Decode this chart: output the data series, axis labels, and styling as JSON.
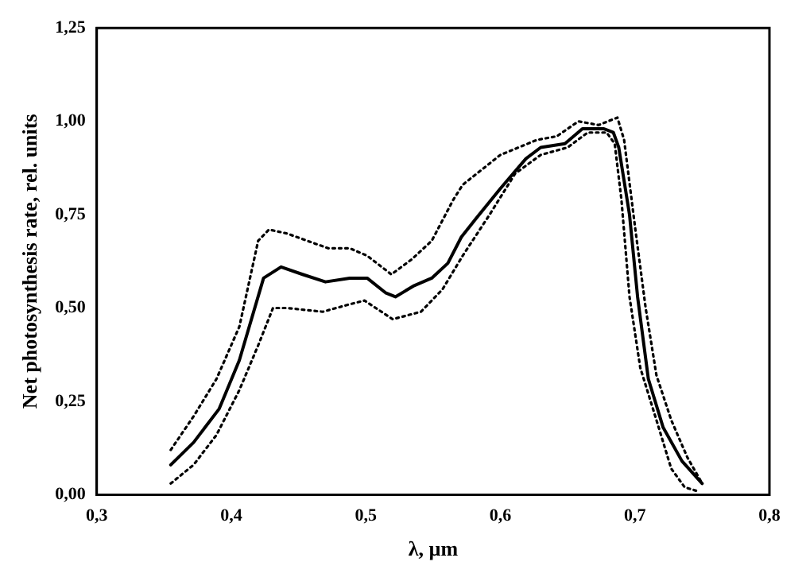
{
  "chart_data": {
    "type": "line",
    "xlabel": "λ, µm",
    "ylabel": "Net photosynthesis rate, rel. units",
    "xlim": [
      0.3,
      0.8
    ],
    "ylim": [
      0,
      1.25
    ],
    "xticks": [
      {
        "value": 0.3,
        "label": "0,3"
      },
      {
        "value": 0.4,
        "label": "0,4"
      },
      {
        "value": 0.5,
        "label": "0,5"
      },
      {
        "value": 0.6,
        "label": "0,6"
      },
      {
        "value": 0.7,
        "label": "0,7"
      },
      {
        "value": 0.8,
        "label": "0,8"
      }
    ],
    "yticks": [
      {
        "value": 0,
        "label": "0,00"
      },
      {
        "value": 0.25,
        "label": "0,25"
      },
      {
        "value": 0.5,
        "label": "0,50"
      },
      {
        "value": 0.75,
        "label": "0,75"
      },
      {
        "value": 1,
        "label": "1,00"
      },
      {
        "value": 1.25,
        "label": "1,25"
      }
    ],
    "grid": false,
    "legend": false,
    "marker": "none",
    "series": [
      {
        "color": "#000000",
        "line_style": "solid",
        "x": [
          0.355,
          0.372,
          0.391,
          0.406,
          0.424,
          0.437,
          0.453,
          0.47,
          0.488,
          0.501,
          0.515,
          0.522,
          0.536,
          0.549,
          0.561,
          0.571,
          0.582,
          0.6,
          0.619,
          0.63,
          0.648,
          0.661,
          0.677,
          0.684,
          0.688,
          0.696,
          0.702,
          0.71,
          0.721,
          0.735,
          0.75
        ],
        "values": [
          0.08,
          0.14,
          0.23,
          0.36,
          0.58,
          0.61,
          0.59,
          0.57,
          0.58,
          0.58,
          0.54,
          0.53,
          0.56,
          0.58,
          0.62,
          0.69,
          0.74,
          0.82,
          0.9,
          0.93,
          0.94,
          0.98,
          0.98,
          0.97,
          0.93,
          0.75,
          0.53,
          0.31,
          0.18,
          0.09,
          0.03
        ]
      },
      {
        "color": "#000000",
        "line_style": "dotted",
        "x": [
          0.355,
          0.372,
          0.389,
          0.406,
          0.42,
          0.428,
          0.441,
          0.472,
          0.488,
          0.501,
          0.519,
          0.534,
          0.549,
          0.565,
          0.572,
          0.6,
          0.627,
          0.642,
          0.658,
          0.673,
          0.687,
          0.692,
          0.7,
          0.708,
          0.716,
          0.727,
          0.739,
          0.75
        ],
        "values": [
          0.12,
          0.21,
          0.31,
          0.45,
          0.68,
          0.71,
          0.7,
          0.66,
          0.66,
          0.64,
          0.59,
          0.63,
          0.68,
          0.79,
          0.83,
          0.91,
          0.95,
          0.96,
          1.0,
          0.99,
          1.01,
          0.95,
          0.72,
          0.5,
          0.32,
          0.2,
          0.1,
          0.03
        ]
      },
      {
        "color": "#000000",
        "line_style": "dotted",
        "x": [
          0.355,
          0.372,
          0.389,
          0.406,
          0.42,
          0.431,
          0.441,
          0.468,
          0.488,
          0.499,
          0.52,
          0.541,
          0.557,
          0.572,
          0.592,
          0.611,
          0.63,
          0.65,
          0.665,
          0.679,
          0.685,
          0.69,
          0.696,
          0.704,
          0.716,
          0.727,
          0.737,
          0.746
        ],
        "values": [
          0.03,
          0.08,
          0.16,
          0.28,
          0.4,
          0.5,
          0.5,
          0.49,
          0.51,
          0.52,
          0.47,
          0.49,
          0.55,
          0.64,
          0.75,
          0.86,
          0.91,
          0.93,
          0.97,
          0.97,
          0.94,
          0.79,
          0.53,
          0.34,
          0.2,
          0.07,
          0.02,
          0.01
        ]
      }
    ]
  }
}
